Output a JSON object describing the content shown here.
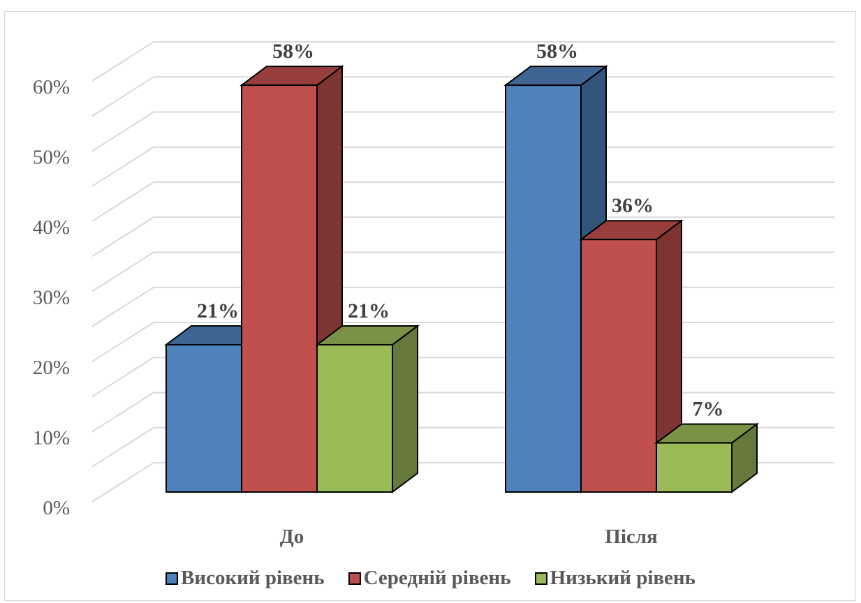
{
  "chart_data": {
    "type": "bar",
    "categories": [
      "До",
      "Після"
    ],
    "series": [
      {
        "name": "Високий рівень",
        "values": [
          21,
          58
        ],
        "color": "#4f81bd"
      },
      {
        "name": "Середній рівень",
        "values": [
          58,
          36
        ],
        "color": "#c0504d"
      },
      {
        "name": "Низький рівень",
        "values": [
          21,
          7
        ],
        "color": "#9bbb59"
      }
    ],
    "data_labels": [
      [
        "21%",
        "58%"
      ],
      [
        "58%",
        "36%"
      ],
      [
        "21%",
        "7%"
      ]
    ],
    "y_ticks": [
      "0%",
      "10%",
      "20%",
      "30%",
      "40%",
      "50%",
      "60%"
    ],
    "ylim": [
      0,
      60
    ],
    "title": "",
    "xlabel": "",
    "ylabel": "",
    "grid": true,
    "legend_position": "bottom",
    "style": "3d-clustered-column"
  }
}
